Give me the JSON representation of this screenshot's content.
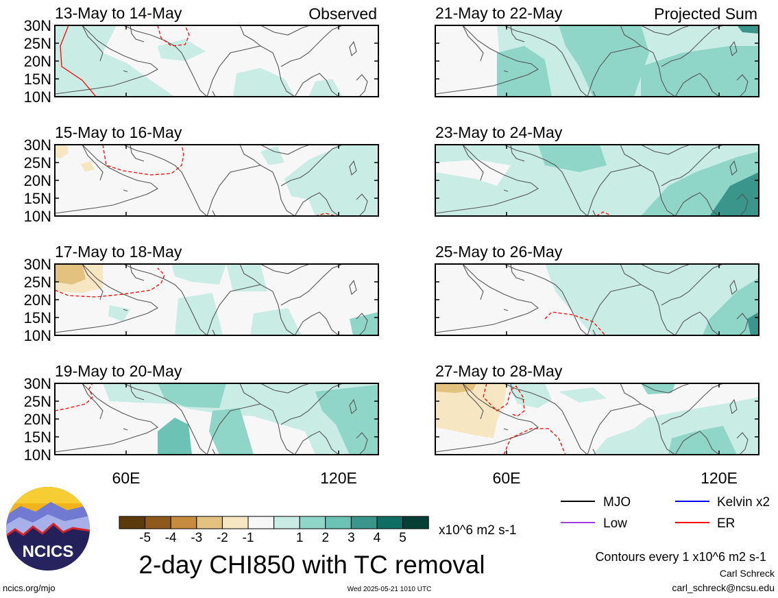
{
  "panels": [
    {
      "date_range": "13-May to 14-May",
      "tag": "Observed",
      "pattern": 0
    },
    {
      "date_range": "15-May to 16-May",
      "tag": "",
      "pattern": 1
    },
    {
      "date_range": "17-May to 18-May",
      "tag": "",
      "pattern": 2
    },
    {
      "date_range": "19-May to 20-May",
      "tag": "",
      "pattern": 3
    },
    {
      "date_range": "21-May to 22-May",
      "tag": "Projected Sum",
      "pattern": 4
    },
    {
      "date_range": "23-May to 24-May",
      "tag": "",
      "pattern": 5
    },
    {
      "date_range": "25-May to 26-May",
      "tag": "",
      "pattern": 6
    },
    {
      "date_range": "27-May to 28-May",
      "tag": "",
      "pattern": 7
    }
  ],
  "lat_labels": [
    "30N",
    "25N",
    "20N",
    "15N",
    "10N"
  ],
  "lon_labels": [
    "60E",
    "120E"
  ],
  "colorbar": {
    "colors": [
      "#5c3a0c",
      "#8e5a1b",
      "#c68b3e",
      "#e3c27f",
      "#f6e7c2",
      "#f7f7f7",
      "#c9ece4",
      "#8fd6c8",
      "#6cc2b4",
      "#3a958a",
      "#0f6e63",
      "#063f33"
    ],
    "tick_labels": [
      "-5",
      "-4",
      "-3",
      "-2",
      "-1",
      "1",
      "2",
      "3",
      "4",
      "5"
    ],
    "units": "x10^6 m2 s-1"
  },
  "title": "2-day CHI850 with TC removal",
  "legend": [
    {
      "label": "MJO",
      "color": "#000000"
    },
    {
      "label": "Kelvin x2",
      "color": "#0000ff"
    },
    {
      "label": "Low",
      "color": "#a040e0"
    },
    {
      "label": "ER",
      "color": "#ff0000"
    }
  ],
  "contour_note": "Contours every 1 x10^6 m2 s-1",
  "author": "Carl Schreck",
  "email": "carl_schreck@ncsu.edu",
  "site": "ncics.org/mjo",
  "timestamp": "Wed 2025-05-21 1010 UTC",
  "logo_text": "NCICS"
}
